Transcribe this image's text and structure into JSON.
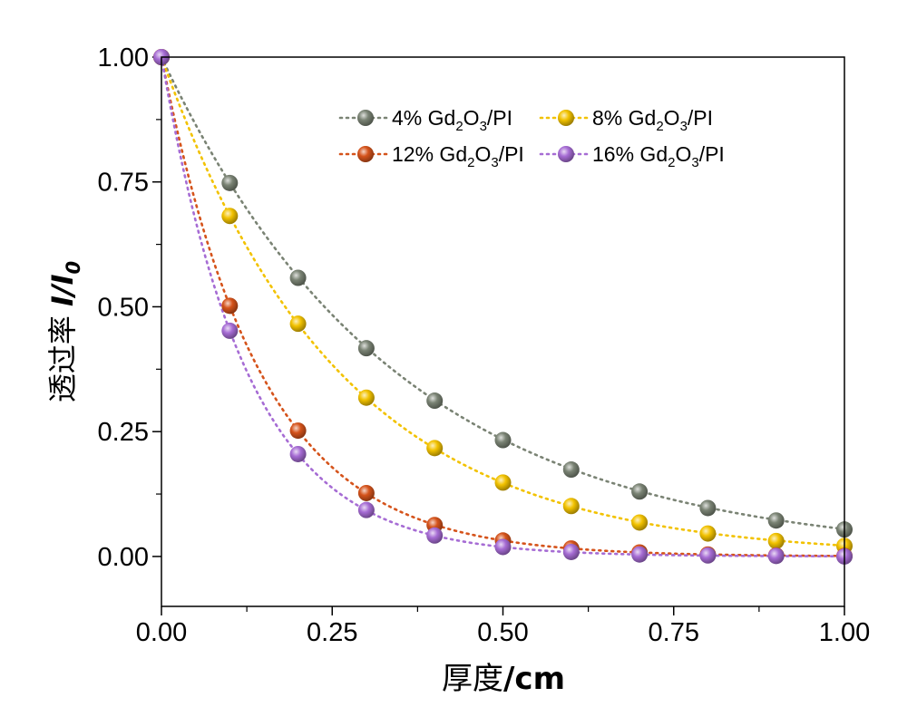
{
  "chart_data": {
    "type": "scatter",
    "title": "",
    "xlabel": {
      "prefix": "厚度",
      "unit": "/cm"
    },
    "ylabel": {
      "prefix": "透过率 ",
      "italic": "I/I",
      "sub": "0"
    },
    "xlim": [
      0,
      1.0
    ],
    "ylim": [
      -0.1,
      1.0
    ],
    "xticks": [
      "0.00",
      "0.25",
      "0.50",
      "0.75",
      "1.00"
    ],
    "yticks": [
      "0.00",
      "0.25",
      "0.50",
      "0.75",
      "1.00"
    ],
    "grid": false,
    "legend_position": "top-right",
    "x": [
      0.0,
      0.1,
      0.2,
      0.3,
      0.4,
      0.5,
      0.6,
      0.7,
      0.8,
      0.9,
      1.0
    ],
    "series": [
      {
        "name": "4% Gd2O3/PI",
        "legend": {
          "pre": "4% Gd",
          "s1": "2",
          "mid": "O",
          "s2": "3",
          "post": "/PI"
        },
        "color": "#7a8374",
        "values": [
          1.0,
          0.748,
          0.558,
          0.417,
          0.312,
          0.233,
          0.174,
          0.13,
          0.097,
          0.072,
          0.054
        ]
      },
      {
        "name": "8% Gd2O3/PI",
        "legend": {
          "pre": "8% Gd",
          "s1": "2",
          "mid": "O",
          "s2": "3",
          "post": "/PI"
        },
        "color": "#f2c200",
        "values": [
          1.0,
          0.682,
          0.466,
          0.318,
          0.217,
          0.148,
          0.101,
          0.068,
          0.046,
          0.031,
          0.021
        ]
      },
      {
        "name": "12% Gd2O3/PI",
        "legend": {
          "pre": "12% Gd",
          "s1": "2",
          "mid": "O",
          "s2": "3",
          "post": "/PI"
        },
        "color": "#d5531b",
        "values": [
          1.0,
          0.502,
          0.252,
          0.127,
          0.063,
          0.032,
          0.016,
          0.008,
          0.004,
          0.002,
          0.001
        ]
      },
      {
        "name": "16% Gd2O3/PI",
        "legend": {
          "pre": "16% Gd",
          "s1": "2",
          "mid": "O",
          "s2": "3",
          "post": "/PI"
        },
        "color": "#a66cd4",
        "values": [
          1.0,
          0.452,
          0.205,
          0.093,
          0.042,
          0.019,
          0.009,
          0.004,
          0.002,
          0.001,
          0.0
        ]
      }
    ]
  }
}
